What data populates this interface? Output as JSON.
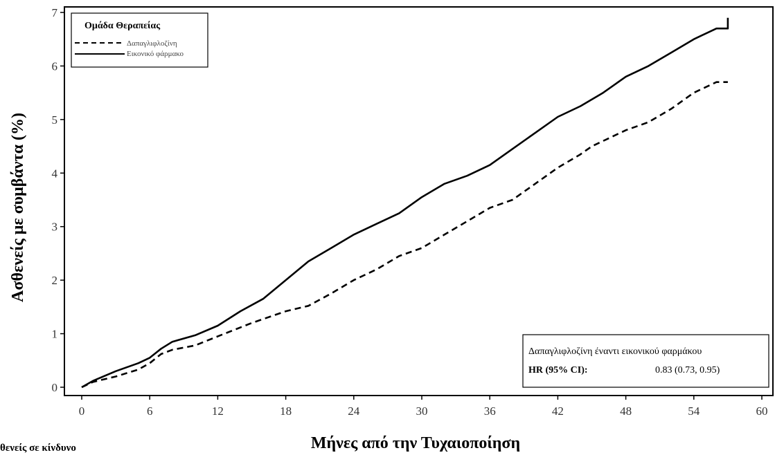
{
  "chart_data": {
    "type": "line",
    "xlabel": "Μήνες από την Τυχαιοποίηση",
    "ylabel": "Ασθενείς με συμβάντα (%)",
    "xlim": [
      0,
      60
    ],
    "ylim": [
      0,
      7
    ],
    "x_ticks": [
      0,
      6,
      12,
      18,
      24,
      30,
      36,
      42,
      48,
      54,
      60
    ],
    "y_ticks": [
      0,
      1,
      2,
      3,
      4,
      5,
      6,
      7
    ],
    "grid": false,
    "legend": {
      "title": "Ομάδα Θεραπείας",
      "position": "top-left",
      "items": [
        "Δαπαγλιφλοζίνη",
        "Εικονικό φάρμακο"
      ]
    },
    "series": [
      {
        "name": "Δαπαγλιφλοζίνη",
        "style": "dashed",
        "color": "#000000",
        "x": [
          0,
          1,
          3,
          5,
          6,
          7,
          8,
          10,
          12,
          15,
          18,
          20,
          22,
          24,
          26,
          28,
          30,
          32,
          34,
          36,
          38,
          40,
          42,
          44,
          45,
          46,
          48,
          50,
          52,
          54,
          56,
          57
        ],
        "y": [
          0,
          0.1,
          0.2,
          0.33,
          0.45,
          0.62,
          0.7,
          0.78,
          0.95,
          1.2,
          1.42,
          1.52,
          1.75,
          2.0,
          2.2,
          2.45,
          2.6,
          2.85,
          3.1,
          3.35,
          3.5,
          3.8,
          4.1,
          4.35,
          4.5,
          4.6,
          4.8,
          4.95,
          5.2,
          5.5,
          5.7,
          5.7
        ]
      },
      {
        "name": "Εικονικό φάρμακο",
        "style": "solid",
        "color": "#000000",
        "x": [
          0,
          1,
          3,
          5,
          6,
          7,
          8,
          10,
          12,
          14,
          16,
          18,
          20,
          22,
          24,
          26,
          28,
          30,
          32,
          34,
          36,
          38,
          40,
          42,
          44,
          46,
          48,
          50,
          52,
          54,
          56,
          57,
          57
        ],
        "y": [
          0,
          0.12,
          0.3,
          0.45,
          0.55,
          0.72,
          0.85,
          0.97,
          1.15,
          1.42,
          1.65,
          2.0,
          2.35,
          2.6,
          2.85,
          3.05,
          3.25,
          3.55,
          3.8,
          3.95,
          4.15,
          4.45,
          4.75,
          5.05,
          5.25,
          5.5,
          5.8,
          6.0,
          6.25,
          6.5,
          6.7,
          6.7,
          6.9
        ]
      }
    ],
    "annotation": {
      "title": "Δαπαγλιφλοζίνη έναντι εικονικού φαρμάκου",
      "label": "HR (95% CI):",
      "value": "0.83 (0.73, 0.95)"
    },
    "footer_label": "θενείς σε κίνδυνο"
  }
}
